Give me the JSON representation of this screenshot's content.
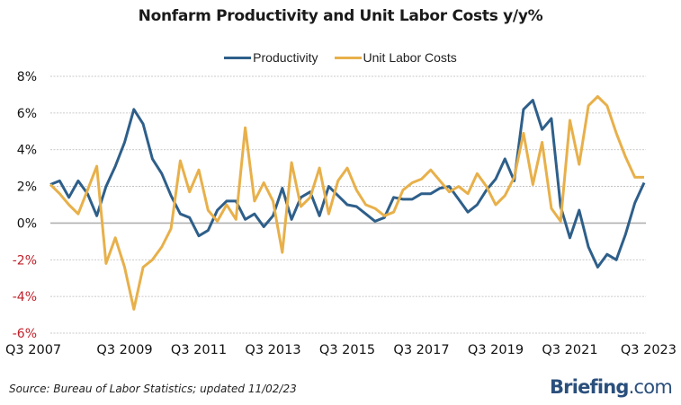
{
  "chart_data": {
    "type": "line",
    "title": "Nonfarm Productivity and Unit Labor Costs y/y%",
    "xlabel": "",
    "ylabel": "",
    "ylim": [
      -6,
      8
    ],
    "yticks": [
      8,
      6,
      4,
      2,
      0,
      -2,
      -4,
      -6
    ],
    "ytick_labels": [
      "8%",
      "6%",
      "4%",
      "2%",
      "0%",
      "-2%",
      "-4%",
      "-6%"
    ],
    "negative_tick_color": "#c0202a",
    "positive_tick_color": "#111111",
    "grid": true,
    "legend_position": "top-center",
    "x_start": "Q3 2007",
    "x_end": "Q3 2023",
    "x_frequency": "quarterly",
    "xtick_labels": [
      "Q3 2007",
      "Q3 2009",
      "Q3 2011",
      "Q3 2013",
      "Q3 2015",
      "Q3 2017",
      "Q3 2019",
      "Q3 2021",
      "Q3 2023"
    ],
    "xtick_every": 8,
    "series": [
      {
        "name": "Productivity",
        "color": "#2e5f8a",
        "values": [
          2.1,
          2.3,
          1.4,
          2.3,
          1.6,
          0.4,
          2.0,
          3.1,
          4.4,
          6.2,
          5.4,
          3.5,
          2.7,
          1.5,
          0.5,
          0.3,
          -0.7,
          -0.4,
          0.7,
          1.2,
          1.2,
          0.2,
          0.5,
          -0.2,
          0.4,
          1.9,
          0.2,
          1.4,
          1.7,
          0.4,
          2.0,
          1.5,
          1.0,
          0.9,
          0.5,
          0.1,
          0.3,
          1.4,
          1.3,
          1.3,
          1.6,
          1.6,
          1.9,
          2.0,
          1.3,
          0.6,
          1.0,
          1.8,
          2.4,
          3.5,
          2.3,
          6.2,
          6.7,
          5.1,
          5.7,
          0.9,
          -0.8,
          0.7,
          -1.3,
          -2.4,
          -1.7,
          -2.0,
          -0.6,
          1.1,
          2.2
        ]
      },
      {
        "name": "Unit Labor Costs",
        "color": "#e8b04a",
        "values": [
          2.1,
          1.6,
          1.0,
          0.5,
          1.8,
          3.1,
          -2.2,
          -0.8,
          -2.4,
          -4.7,
          -2.4,
          -2.0,
          -1.3,
          -0.3,
          3.4,
          1.7,
          2.9,
          0.7,
          0.1,
          1.0,
          0.2,
          5.2,
          1.2,
          2.2,
          1.2,
          -1.6,
          3.3,
          0.9,
          1.4,
          3.0,
          0.5,
          2.3,
          3.0,
          1.8,
          1.0,
          0.8,
          0.4,
          0.6,
          1.8,
          2.2,
          2.4,
          2.9,
          2.3,
          1.7,
          2.0,
          1.6,
          2.7,
          2.0,
          1.0,
          1.5,
          2.5,
          4.9,
          2.1,
          4.4,
          0.8,
          0.1,
          5.6,
          3.2,
          6.4,
          6.9,
          6.4,
          4.9,
          3.6,
          2.5,
          2.5
        ]
      }
    ]
  },
  "footer": {
    "source": "Source: Bureau of Labor Statistics; updated 11/02/23",
    "brand_main": "Briefing",
    "brand_suffix": ".com"
  }
}
